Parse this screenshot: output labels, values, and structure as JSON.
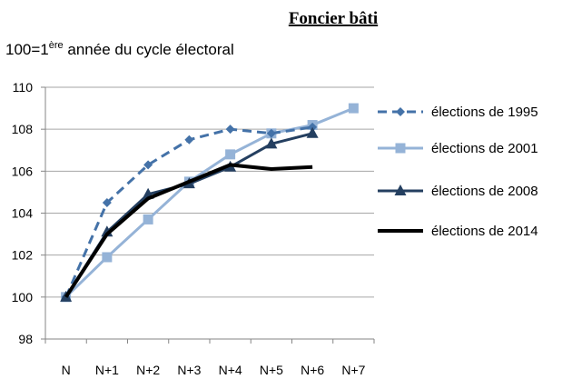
{
  "chart_data": {
    "type": "line",
    "title": "Foncier bâti",
    "ylabel_parts": [
      "100=1",
      "ère",
      " année du cycle électoral"
    ],
    "categories": [
      "N",
      "N+1",
      "N+2",
      "N+3",
      "N+4",
      "N+5",
      "N+6",
      "N+7"
    ],
    "ylim": [
      98,
      110
    ],
    "yticks": [
      "98",
      "100",
      "102",
      "104",
      "106",
      "108",
      "110"
    ],
    "grid": true,
    "legend_position": "right",
    "series": [
      {
        "name": "élections de 1995",
        "color": "#4472a8",
        "dash": true,
        "marker": "diamond",
        "values": [
          100,
          104.5,
          106.3,
          107.5,
          108.0,
          107.8,
          108.1,
          null
        ]
      },
      {
        "name": "élections de 2001",
        "color": "#95b3d7",
        "dash": false,
        "marker": "square",
        "values": [
          100,
          101.9,
          103.7,
          105.5,
          106.8,
          107.8,
          108.2,
          109.0
        ]
      },
      {
        "name": "élections de 2008",
        "color": "#243f60",
        "dash": false,
        "marker": "triangle",
        "values": [
          100,
          103.1,
          104.9,
          105.4,
          106.2,
          107.3,
          107.8,
          null
        ]
      },
      {
        "name": "élections de 2014",
        "color": "#000000",
        "dash": false,
        "marker": "none",
        "values": [
          100,
          103.0,
          104.7,
          105.5,
          106.3,
          106.1,
          106.2,
          null
        ]
      }
    ]
  }
}
